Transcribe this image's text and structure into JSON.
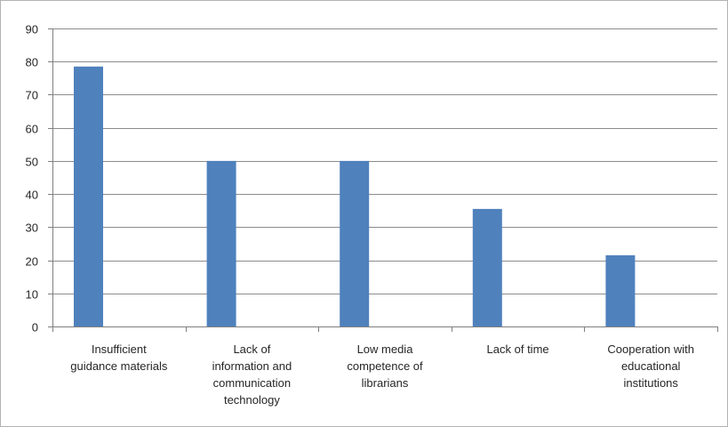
{
  "chart_data": {
    "type": "bar",
    "categories": [
      "Insufficient guidance materials",
      "Lack of information and communication technology",
      "Low media competence of librarians",
      "Lack of time",
      "Cooperation with educational institutions"
    ],
    "category_label_lines": [
      [
        "Insufficient",
        "guidance materials"
      ],
      [
        "Lack of",
        "information and",
        "communication",
        "technology"
      ],
      [
        "Low media",
        "competence of",
        "librarians"
      ],
      [
        "Lack of time"
      ],
      [
        "Cooperation with",
        "educational",
        "institutions"
      ]
    ],
    "values": [
      78.5,
      50,
      50,
      35.5,
      21.5
    ],
    "ylim": [
      0,
      90
    ],
    "yticks": [
      0,
      10,
      20,
      30,
      40,
      50,
      60,
      70,
      80,
      90
    ],
    "grid": true,
    "legend": "none",
    "colors": {
      "bar": "#4f81bd",
      "grid": "#8c8c8c",
      "axis": "#7f7f7f",
      "text": "#262626"
    }
  }
}
